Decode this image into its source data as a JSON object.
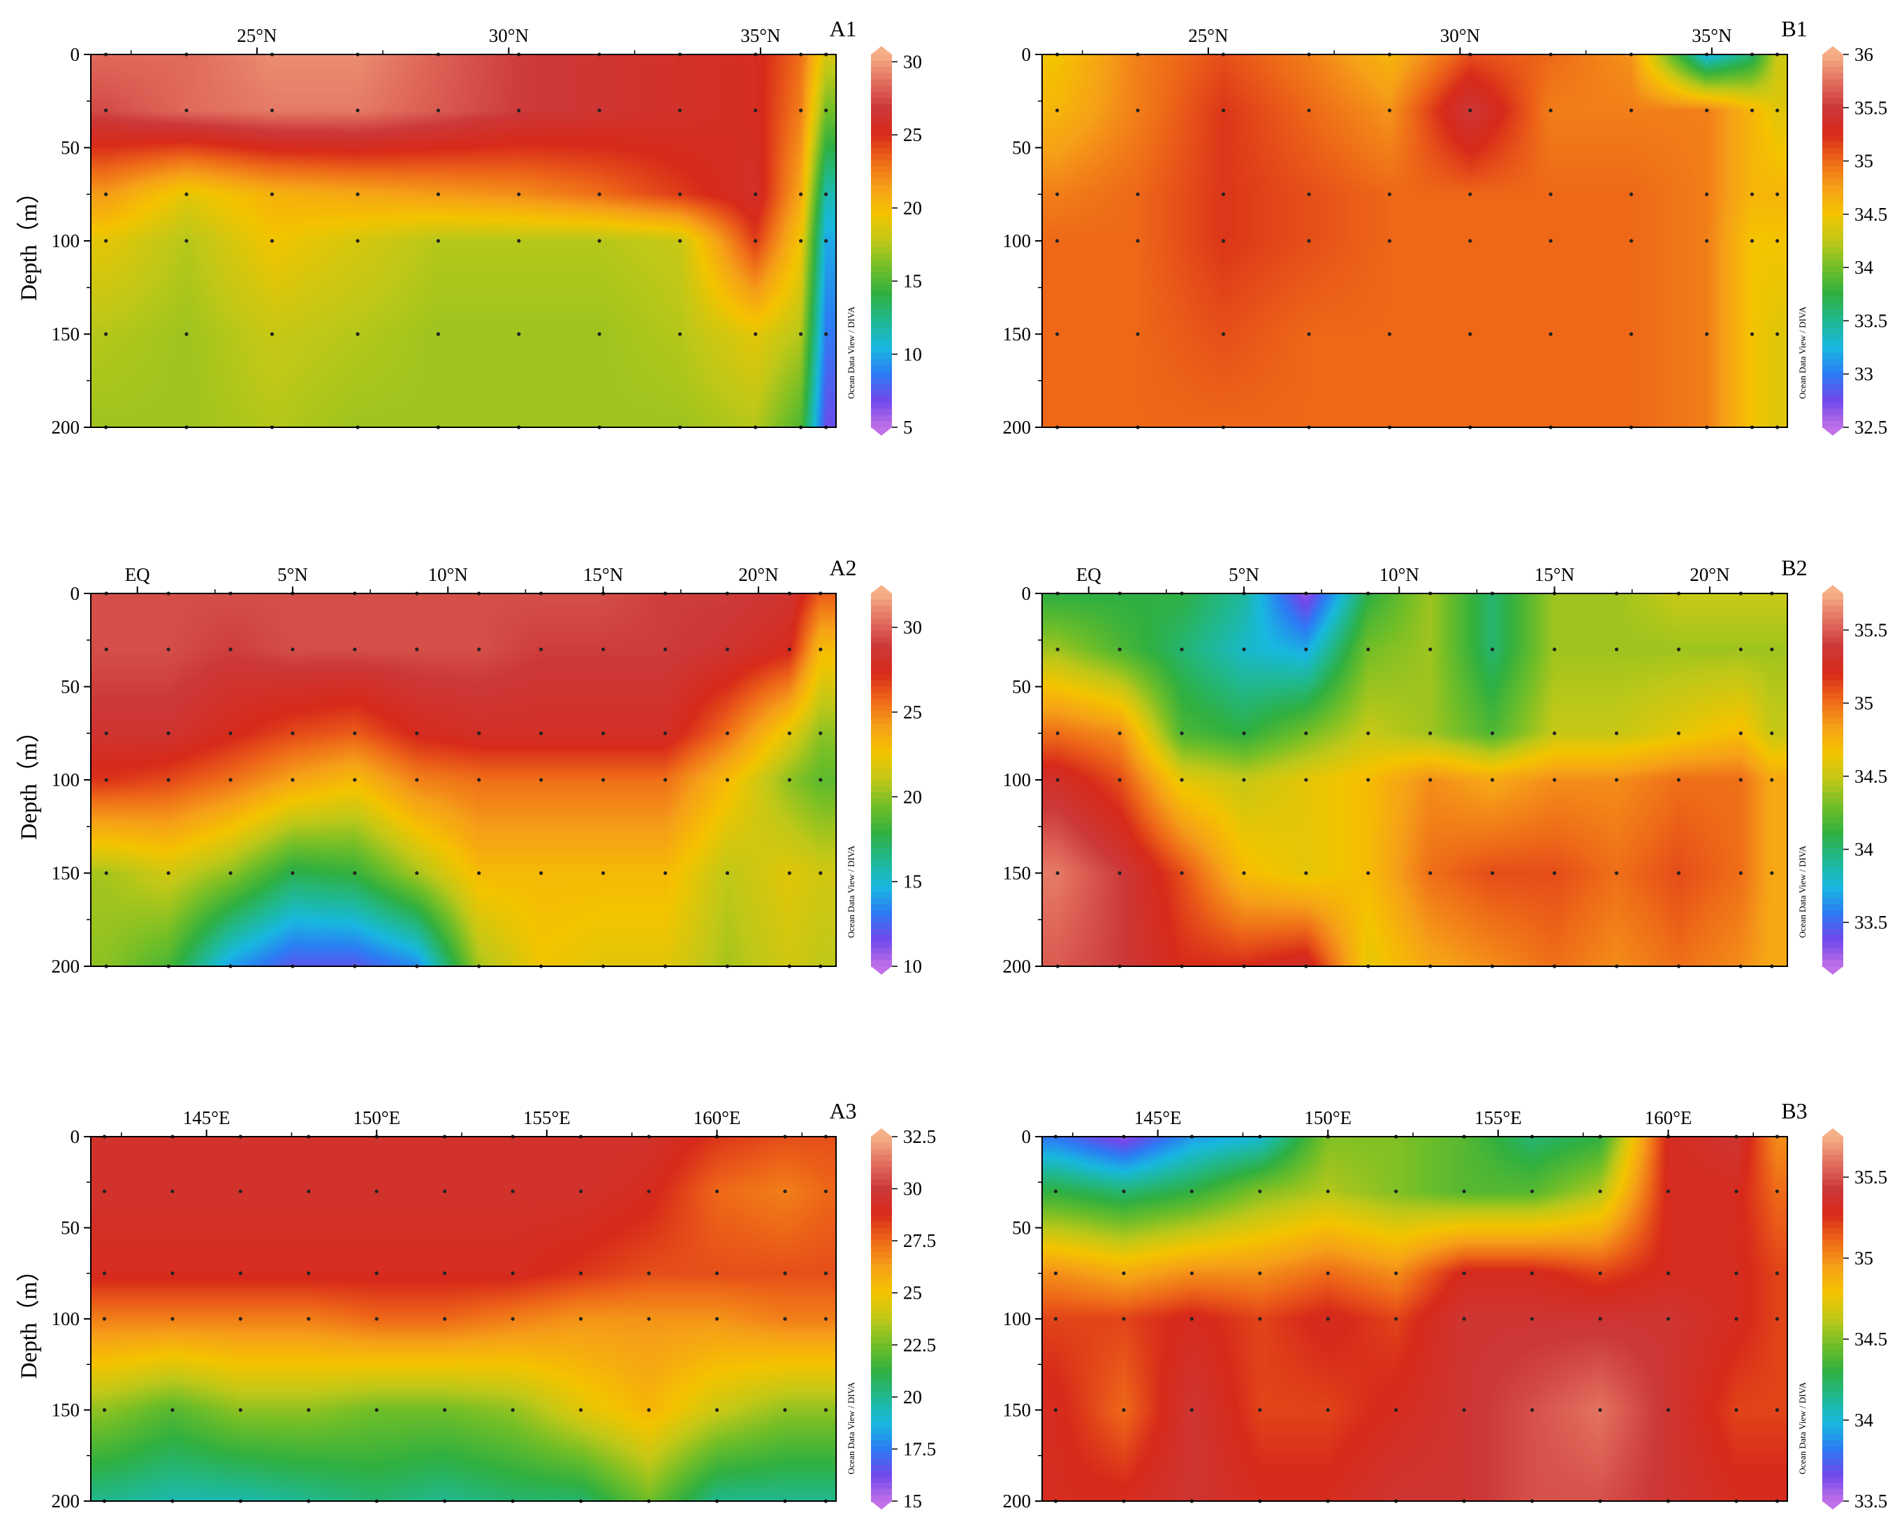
{
  "chart_data": [
    {
      "panel": "A1",
      "type": "heatmap",
      "x_ticks": [
        "25°N",
        "30°N",
        "35°N"
      ],
      "x_range": [
        21.7,
        36.5
      ],
      "ylabel": "Depth（m）",
      "y_ticks": [
        0,
        50,
        100,
        150,
        200
      ],
      "ylim": [
        0,
        200
      ],
      "colorbar": {
        "ticks": [
          30,
          25,
          20,
          15,
          10,
          5
        ],
        "range": [
          5,
          30.5
        ],
        "credit": "Ocean Data View / DIVA"
      },
      "stations_x": [
        22,
        23.6,
        25.3,
        27.0,
        28.6,
        30.2,
        31.8,
        33.4,
        34.9,
        35.8,
        36.3
      ],
      "depths": [
        0,
        30,
        75,
        100,
        150,
        200
      ],
      "values": [
        [
          28.5,
          28.5,
          29.5,
          29.5,
          28.2,
          27.0,
          26.5,
          26.0,
          25.5,
          23.0,
          18.5
        ],
        [
          27.5,
          28.5,
          29.0,
          29.0,
          28.0,
          27.0,
          26.5,
          26.0,
          25.5,
          22.5,
          16.0
        ],
        [
          21.5,
          19.0,
          20.5,
          21.0,
          21.5,
          22.0,
          23.0,
          24.5,
          26.0,
          21.0,
          11.5
        ],
        [
          19.0,
          17.5,
          19.5,
          18.5,
          17.5,
          17.5,
          17.5,
          18.0,
          24.5,
          19.5,
          10.0
        ],
        [
          17.5,
          17.0,
          18.0,
          17.5,
          17.0,
          17.0,
          17.0,
          17.5,
          19.0,
          17.5,
          8.5
        ],
        [
          17.0,
          17.0,
          17.5,
          17.0,
          17.0,
          17.0,
          17.0,
          17.0,
          17.5,
          15.0,
          7.0
        ]
      ]
    },
    {
      "panel": "B1",
      "type": "heatmap",
      "x_ticks": [
        "25°N",
        "30°N",
        "35°N"
      ],
      "x_range": [
        21.7,
        36.5
      ],
      "y_ticks": [
        0,
        50,
        100,
        150,
        200
      ],
      "ylim": [
        0,
        200
      ],
      "colorbar": {
        "ticks": [
          36,
          35.5,
          35,
          34.5,
          34,
          33.5,
          33,
          32.5
        ],
        "range": [
          32.5,
          36
        ],
        "credit": "Ocean Data View / DIVA"
      },
      "stations_x": [
        22,
        23.6,
        25.3,
        27.0,
        28.6,
        30.2,
        31.8,
        33.4,
        34.9,
        35.8,
        36.3
      ],
      "depths": [
        0,
        30,
        75,
        100,
        150,
        200
      ],
      "values": [
        [
          34.5,
          34.9,
          35.1,
          34.9,
          34.6,
          35.1,
          35.0,
          34.8,
          33.2,
          33.6,
          34.3
        ],
        [
          34.6,
          34.9,
          35.2,
          35.0,
          34.8,
          35.5,
          34.9,
          34.9,
          34.9,
          34.6,
          34.4
        ],
        [
          34.9,
          35.0,
          35.2,
          35.1,
          35.0,
          35.0,
          35.0,
          35.0,
          34.9,
          34.6,
          34.6
        ],
        [
          35.0,
          35.0,
          35.2,
          35.1,
          35.0,
          35.0,
          35.0,
          35.0,
          34.9,
          34.5,
          34.5
        ],
        [
          35.0,
          35.0,
          35.1,
          35.0,
          35.0,
          35.0,
          35.0,
          35.0,
          34.9,
          34.5,
          34.4
        ],
        [
          35.0,
          35.0,
          35.0,
          35.0,
          35.0,
          35.0,
          35.0,
          35.0,
          34.9,
          34.5,
          34.4
        ]
      ]
    },
    {
      "panel": "A2",
      "type": "heatmap",
      "x_ticks": [
        "EQ",
        "5°N",
        "10°N",
        "15°N",
        "20°N"
      ],
      "x_range": [
        -1.5,
        22.5
      ],
      "ylabel": "Depth（m）",
      "y_ticks": [
        0,
        50,
        100,
        150,
        200
      ],
      "ylim": [
        0,
        200
      ],
      "colorbar": {
        "ticks": [
          30,
          25,
          20,
          15,
          10
        ],
        "range": [
          10,
          32
        ],
        "credit": "Ocean Data View / DIVA"
      },
      "stations_x": [
        -1,
        1,
        3,
        5,
        7,
        9,
        11,
        13,
        15,
        17,
        19,
        21,
        22
      ],
      "depths": [
        0,
        30,
        75,
        100,
        150,
        200
      ],
      "values": [
        [
          29.5,
          29.5,
          29.5,
          29.5,
          29.5,
          29.5,
          29.5,
          29.5,
          29.5,
          29.0,
          29.0,
          28.5,
          26.0
        ],
        [
          29.5,
          29.5,
          29.0,
          29.5,
          29.5,
          29.5,
          29.5,
          29.0,
          29.0,
          29.0,
          28.5,
          27.5,
          23.0
        ],
        [
          28.5,
          28.5,
          27.5,
          26.5,
          26.0,
          27.5,
          28.0,
          28.0,
          28.0,
          28.0,
          25.5,
          22.0,
          20.0
        ],
        [
          27.0,
          26.5,
          25.5,
          24.0,
          23.0,
          25.0,
          25.5,
          25.5,
          25.5,
          25.5,
          23.0,
          20.0,
          19.0
        ],
        [
          20.5,
          21.5,
          20.0,
          17.5,
          18.0,
          20.5,
          23.0,
          23.0,
          23.0,
          23.0,
          21.0,
          22.0,
          21.5
        ],
        [
          20.0,
          18.5,
          14.0,
          12.0,
          12.0,
          13.5,
          20.5,
          22.5,
          22.0,
          22.0,
          20.5,
          21.5,
          21.0
        ]
      ]
    },
    {
      "panel": "B2",
      "type": "heatmap",
      "x_ticks": [
        "EQ",
        "5°N",
        "10°N",
        "15°N",
        "20°N"
      ],
      "x_range": [
        -1.5,
        22.5
      ],
      "y_ticks": [
        0,
        50,
        100,
        150,
        200
      ],
      "ylim": [
        0,
        200
      ],
      "colorbar": {
        "ticks": [
          35.5,
          35,
          34.5,
          34,
          33.5
        ],
        "range": [
          33.2,
          35.75
        ],
        "credit": "Ocean Data View / DIVA"
      },
      "stations_x": [
        -1,
        1,
        3,
        5,
        7,
        9,
        11,
        13,
        15,
        17,
        19,
        21,
        22
      ],
      "depths": [
        0,
        30,
        75,
        100,
        150,
        200
      ],
      "values": [
        [
          34.1,
          34.1,
          34.1,
          33.9,
          33.3,
          34.1,
          34.4,
          34.0,
          34.4,
          34.4,
          34.5,
          34.5,
          34.5
        ],
        [
          34.4,
          34.2,
          34.0,
          33.8,
          33.7,
          34.3,
          34.4,
          34.0,
          34.4,
          34.4,
          34.4,
          34.4,
          34.4
        ],
        [
          35.0,
          34.9,
          34.2,
          34.1,
          34.3,
          34.5,
          34.4,
          34.2,
          34.5,
          34.5,
          34.6,
          34.7,
          34.5
        ],
        [
          35.3,
          35.1,
          34.6,
          34.5,
          34.6,
          34.7,
          34.9,
          34.8,
          34.9,
          34.9,
          35.0,
          35.0,
          34.8
        ],
        [
          35.6,
          35.4,
          35.1,
          34.7,
          34.6,
          34.7,
          35.0,
          35.1,
          35.1,
          35.0,
          35.1,
          35.0,
          34.8
        ],
        [
          35.5,
          35.4,
          35.2,
          35.2,
          35.3,
          34.6,
          34.8,
          34.9,
          35.0,
          34.9,
          35.0,
          34.9,
          34.8
        ]
      ]
    },
    {
      "panel": "A3",
      "type": "heatmap",
      "x_ticks": [
        "145°E",
        "150°E",
        "155°E",
        "160°E"
      ],
      "x_range": [
        141.6,
        163.5
      ],
      "ylabel": "Depth（m）",
      "y_ticks": [
        0,
        50,
        100,
        150,
        200
      ],
      "ylim": [
        0,
        200
      ],
      "colorbar": {
        "ticks": [
          32.5,
          30,
          27.5,
          25,
          22.5,
          20,
          17.5,
          15
        ],
        "range": [
          15,
          32.5
        ],
        "credit": "Ocean Data View / DIVA"
      },
      "stations_x": [
        142,
        144,
        146,
        148,
        150,
        152,
        154,
        156,
        158,
        160,
        162,
        163.2
      ],
      "depths": [
        0,
        30,
        75,
        100,
        150,
        200
      ],
      "values": [
        [
          29.5,
          29.5,
          29.5,
          29.5,
          29.5,
          29.5,
          29.5,
          29.5,
          29.5,
          28.5,
          28.0,
          28.0
        ],
        [
          29.5,
          29.5,
          29.5,
          29.5,
          29.5,
          29.5,
          29.5,
          29.5,
          29.0,
          27.5,
          27.0,
          27.5
        ],
        [
          29.0,
          29.0,
          29.0,
          29.0,
          29.0,
          29.0,
          29.0,
          28.5,
          28.0,
          28.0,
          28.0,
          28.0
        ],
        [
          27.0,
          27.0,
          27.0,
          27.0,
          27.5,
          27.5,
          27.0,
          26.5,
          26.5,
          26.5,
          27.0,
          27.0
        ],
        [
          23.0,
          22.0,
          23.0,
          23.0,
          22.5,
          22.5,
          23.0,
          24.5,
          25.5,
          24.0,
          23.0,
          23.0
        ],
        [
          20.0,
          19.5,
          19.5,
          20.0,
          20.5,
          20.0,
          20.5,
          20.5,
          22.5,
          20.0,
          20.0,
          20.0
        ]
      ]
    },
    {
      "panel": "B3",
      "type": "heatmap",
      "x_ticks": [
        "145°E",
        "150°E",
        "155°E",
        "160°E"
      ],
      "x_range": [
        141.6,
        163.5
      ],
      "y_ticks": [
        0,
        50,
        100,
        150,
        200
      ],
      "ylim": [
        0,
        200
      ],
      "colorbar": {
        "ticks": [
          35.5,
          35,
          34.5,
          34,
          33.5
        ],
        "range": [
          33.5,
          35.75
        ],
        "credit": "Ocean Data View / DIVA"
      },
      "stations_x": [
        142,
        144,
        146,
        148,
        150,
        152,
        154,
        156,
        158,
        160,
        162,
        163.2
      ],
      "depths": [
        0,
        30,
        75,
        100,
        150,
        200
      ],
      "values": [
        [
          33.8,
          33.6,
          33.9,
          34.0,
          34.5,
          34.5,
          34.4,
          34.2,
          34.3,
          35.3,
          35.4,
          35.0
        ],
        [
          34.3,
          34.2,
          34.3,
          34.5,
          34.6,
          34.5,
          34.4,
          34.4,
          34.6,
          35.3,
          35.3,
          35.1
        ],
        [
          35.0,
          34.9,
          35.0,
          35.0,
          35.1,
          35.0,
          35.3,
          35.3,
          35.2,
          35.3,
          35.3,
          35.2
        ],
        [
          35.2,
          35.2,
          35.3,
          35.2,
          35.3,
          35.2,
          35.4,
          35.4,
          35.4,
          35.4,
          35.3,
          35.2
        ],
        [
          35.3,
          35.1,
          35.4,
          35.2,
          35.2,
          35.3,
          35.4,
          35.5,
          35.6,
          35.4,
          35.2,
          35.2
        ],
        [
          35.3,
          35.3,
          35.4,
          35.3,
          35.3,
          35.4,
          35.4,
          35.5,
          35.5,
          35.4,
          35.3,
          35.3
        ]
      ]
    }
  ],
  "colormap": [
    "#c070e8",
    "#7048ec",
    "#2c7cf4",
    "#18b8e0",
    "#20b890",
    "#30b040",
    "#70be28",
    "#c0c818",
    "#f4c400",
    "#f6a018",
    "#ee6818",
    "#d82a1a",
    "#cc3838",
    "#e27060",
    "#f6b088"
  ]
}
